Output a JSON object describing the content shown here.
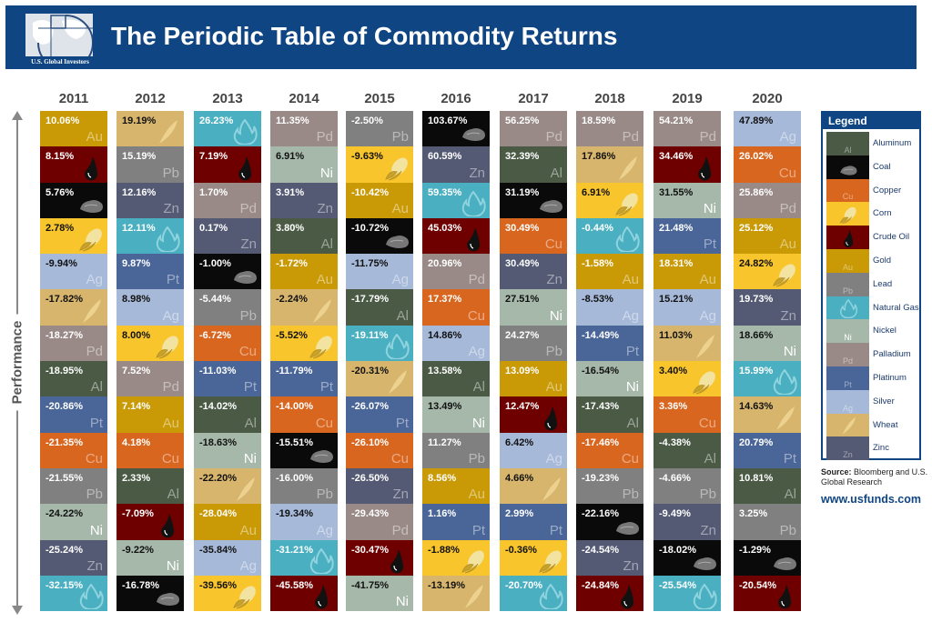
{
  "header": {
    "title": "The Periodic Table of Commodity Returns",
    "logo_text": "U.S. Global Investors"
  },
  "axis_label": "Performance",
  "legend": {
    "title": "Legend",
    "items": [
      {
        "key": "Al",
        "name": "Aluminum",
        "symbol": "Al",
        "color": "#4a5a44",
        "icon": ""
      },
      {
        "key": "Coal",
        "name": "Coal",
        "symbol": "",
        "color": "#0a0a0a",
        "icon": "coal-icon"
      },
      {
        "key": "Cu",
        "name": "Copper",
        "symbol": "Cu",
        "color": "#d9661f",
        "icon": ""
      },
      {
        "key": "Corn",
        "name": "Corn",
        "symbol": "",
        "color": "#f8c52c",
        "icon": "corn-icon"
      },
      {
        "key": "Oil",
        "name": "Crude Oil",
        "symbol": "",
        "color": "#6e0000",
        "icon": "oil-drop-icon"
      },
      {
        "key": "Au",
        "name": "Gold",
        "symbol": "Au",
        "color": "#c99a06",
        "icon": ""
      },
      {
        "key": "Pb",
        "name": "Lead",
        "symbol": "Pb",
        "color": "#808081",
        "icon": ""
      },
      {
        "key": "Gas",
        "name": "Natural Gas",
        "symbol": "",
        "color": "#4ab0c1",
        "icon": "flame-icon"
      },
      {
        "key": "Ni",
        "name": "Nickel",
        "symbol": "Ni",
        "color": "#a5b8a9",
        "icon": ""
      },
      {
        "key": "Pd",
        "name": "Palladium",
        "symbol": "Pd",
        "color": "#998a87",
        "icon": ""
      },
      {
        "key": "Pt",
        "name": "Platinum",
        "symbol": "Pt",
        "color": "#4a6699",
        "icon": ""
      },
      {
        "key": "Ag",
        "name": "Silver",
        "symbol": "Ag",
        "color": "#a6b9d9",
        "icon": ""
      },
      {
        "key": "Wheat",
        "name": "Wheat",
        "symbol": "",
        "color": "#d7b56d",
        "icon": "wheat-icon"
      },
      {
        "key": "Zn",
        "name": "Zinc",
        "symbol": "Zn",
        "color": "#545a73",
        "icon": ""
      }
    ]
  },
  "source": {
    "label": "Source:",
    "text": "Bloomberg and U.S. Global Research"
  },
  "url": "www.usfunds.com",
  "chart_data": {
    "type": "table",
    "title": "The Periodic Table of Commodity Returns",
    "ylabel": "Performance",
    "columns": [
      {
        "year": "2011",
        "cells": [
          [
            "10.06%",
            "Au"
          ],
          [
            "8.15%",
            "Oil"
          ],
          [
            "5.76%",
            "Coal"
          ],
          [
            "2.78%",
            "Corn"
          ],
          [
            "-9.94%",
            "Ag"
          ],
          [
            "-17.82%",
            "Wheat"
          ],
          [
            "-18.27%",
            "Pd"
          ],
          [
            "-18.95%",
            "Al"
          ],
          [
            "-20.86%",
            "Pt"
          ],
          [
            "-21.35%",
            "Cu"
          ],
          [
            "-21.55%",
            "Pb"
          ],
          [
            "-24.22%",
            "Ni"
          ],
          [
            "-25.24%",
            "Zn"
          ],
          [
            "-32.15%",
            "Gas"
          ]
        ]
      },
      {
        "year": "2012",
        "cells": [
          [
            "19.19%",
            "Wheat"
          ],
          [
            "15.19%",
            "Pb"
          ],
          [
            "12.16%",
            "Zn"
          ],
          [
            "12.11%",
            "Gas"
          ],
          [
            "9.87%",
            "Pt"
          ],
          [
            "8.98%",
            "Ag"
          ],
          [
            "8.00%",
            "Corn"
          ],
          [
            "7.52%",
            "Pd"
          ],
          [
            "7.14%",
            "Au"
          ],
          [
            "4.18%",
            "Cu"
          ],
          [
            "2.33%",
            "Al"
          ],
          [
            "-7.09%",
            "Oil"
          ],
          [
            "-9.22%",
            "Ni"
          ],
          [
            "-16.78%",
            "Coal"
          ]
        ]
      },
      {
        "year": "2013",
        "cells": [
          [
            "26.23%",
            "Gas"
          ],
          [
            "7.19%",
            "Oil"
          ],
          [
            "1.70%",
            "Pd"
          ],
          [
            "0.17%",
            "Zn"
          ],
          [
            "-1.00%",
            "Coal"
          ],
          [
            "-5.44%",
            "Pb"
          ],
          [
            "-6.72%",
            "Cu"
          ],
          [
            "-11.03%",
            "Pt"
          ],
          [
            "-14.02%",
            "Al"
          ],
          [
            "-18.63%",
            "Ni"
          ],
          [
            "-22.20%",
            "Wheat"
          ],
          [
            "-28.04%",
            "Au"
          ],
          [
            "-35.84%",
            "Ag"
          ],
          [
            "-39.56%",
            "Corn"
          ]
        ]
      },
      {
        "year": "2014",
        "cells": [
          [
            "11.35%",
            "Pd"
          ],
          [
            "6.91%",
            "Ni"
          ],
          [
            "3.91%",
            "Zn"
          ],
          [
            "3.80%",
            "Al"
          ],
          [
            "-1.72%",
            "Au"
          ],
          [
            "-2.24%",
            "Wheat"
          ],
          [
            "-5.52%",
            "Corn"
          ],
          [
            "-11.79%",
            "Pt"
          ],
          [
            "-14.00%",
            "Cu"
          ],
          [
            "-15.51%",
            "Coal"
          ],
          [
            "-16.00%",
            "Pb"
          ],
          [
            "-19.34%",
            "Ag"
          ],
          [
            "-31.21%",
            "Gas"
          ],
          [
            "-45.58%",
            "Oil"
          ]
        ]
      },
      {
        "year": "2015",
        "cells": [
          [
            "-2.50%",
            "Pb"
          ],
          [
            "-9.63%",
            "Corn"
          ],
          [
            "-10.42%",
            "Au"
          ],
          [
            "-10.72%",
            "Coal"
          ],
          [
            "-11.75%",
            "Ag"
          ],
          [
            "-17.79%",
            "Al"
          ],
          [
            "-19.11%",
            "Gas"
          ],
          [
            "-20.31%",
            "Wheat"
          ],
          [
            "-26.07%",
            "Pt"
          ],
          [
            "-26.10%",
            "Cu"
          ],
          [
            "-26.50%",
            "Zn"
          ],
          [
            "-29.43%",
            "Pd"
          ],
          [
            "-30.47%",
            "Oil"
          ],
          [
            "-41.75%",
            "Ni"
          ]
        ]
      },
      {
        "year": "2016",
        "cells": [
          [
            "103.67%",
            "Coal"
          ],
          [
            "60.59%",
            "Zn"
          ],
          [
            "59.35%",
            "Gas"
          ],
          [
            "45.03%",
            "Oil"
          ],
          [
            "20.96%",
            "Pd"
          ],
          [
            "17.37%",
            "Cu"
          ],
          [
            "14.86%",
            "Ag"
          ],
          [
            "13.58%",
            "Al"
          ],
          [
            "13.49%",
            "Ni"
          ],
          [
            "11.27%",
            "Pb"
          ],
          [
            "8.56%",
            "Au"
          ],
          [
            "1.16%",
            "Pt"
          ],
          [
            "-1.88%",
            "Corn"
          ],
          [
            "-13.19%",
            "Wheat"
          ]
        ]
      },
      {
        "year": "2017",
        "cells": [
          [
            "56.25%",
            "Pd"
          ],
          [
            "32.39%",
            "Al"
          ],
          [
            "31.19%",
            "Coal"
          ],
          [
            "30.49%",
            "Cu"
          ],
          [
            "30.49%",
            "Zn"
          ],
          [
            "27.51%",
            "Ni"
          ],
          [
            "24.27%",
            "Pb"
          ],
          [
            "13.09%",
            "Au"
          ],
          [
            "12.47%",
            "Oil"
          ],
          [
            "6.42%",
            "Ag"
          ],
          [
            "4.66%",
            "Wheat"
          ],
          [
            "2.99%",
            "Pt"
          ],
          [
            "-0.36%",
            "Corn"
          ],
          [
            "-20.70%",
            "Gas"
          ]
        ]
      },
      {
        "year": "2018",
        "cells": [
          [
            "18.59%",
            "Pd"
          ],
          [
            "17.86%",
            "Wheat"
          ],
          [
            "6.91%",
            "Corn"
          ],
          [
            "-0.44%",
            "Gas"
          ],
          [
            "-1.58%",
            "Au"
          ],
          [
            "-8.53%",
            "Ag"
          ],
          [
            "-14.49%",
            "Pt"
          ],
          [
            "-16.54%",
            "Ni"
          ],
          [
            "-17.43%",
            "Al"
          ],
          [
            "-17.46%",
            "Cu"
          ],
          [
            "-19.23%",
            "Pb"
          ],
          [
            "-22.16%",
            "Coal"
          ],
          [
            "-24.54%",
            "Zn"
          ],
          [
            "-24.84%",
            "Oil"
          ]
        ]
      },
      {
        "year": "2019",
        "cells": [
          [
            "54.21%",
            "Pd"
          ],
          [
            "34.46%",
            "Oil"
          ],
          [
            "31.55%",
            "Ni"
          ],
          [
            "21.48%",
            "Pt"
          ],
          [
            "18.31%",
            "Au"
          ],
          [
            "15.21%",
            "Ag"
          ],
          [
            "11.03%",
            "Wheat"
          ],
          [
            "3.40%",
            "Corn"
          ],
          [
            "3.36%",
            "Cu"
          ],
          [
            "-4.38%",
            "Al"
          ],
          [
            "-4.66%",
            "Pb"
          ],
          [
            "-9.49%",
            "Zn"
          ],
          [
            "-18.02%",
            "Coal"
          ],
          [
            "-25.54%",
            "Gas"
          ]
        ]
      },
      {
        "year": "2020",
        "cells": [
          [
            "47.89%",
            "Ag"
          ],
          [
            "26.02%",
            "Cu"
          ],
          [
            "25.86%",
            "Pd"
          ],
          [
            "25.12%",
            "Au"
          ],
          [
            "24.82%",
            "Corn"
          ],
          [
            "19.73%",
            "Zn"
          ],
          [
            "18.66%",
            "Ni"
          ],
          [
            "15.99%",
            "Gas"
          ],
          [
            "14.63%",
            "Wheat"
          ],
          [
            "20.79%",
            "Pt"
          ],
          [
            "10.81%",
            "Al"
          ],
          [
            "3.25%",
            "Pb"
          ],
          [
            "-1.29%",
            "Coal"
          ],
          [
            "-20.54%",
            "Oil"
          ]
        ]
      }
    ]
  }
}
